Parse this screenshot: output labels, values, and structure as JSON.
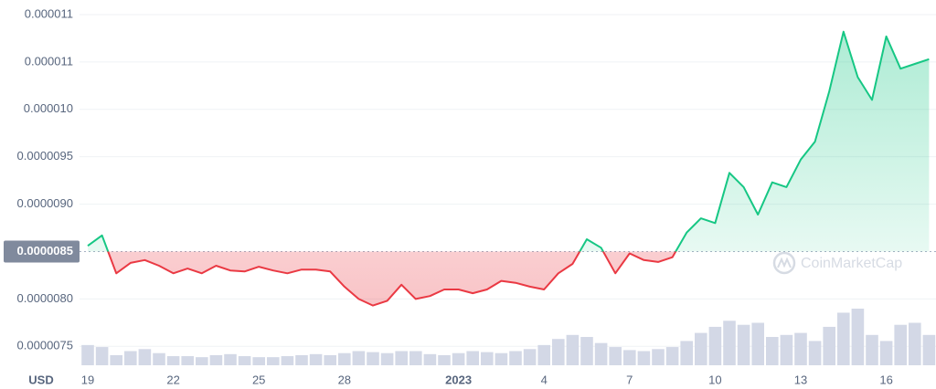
{
  "chart_data": {
    "type": "line",
    "categories": [
      "19",
      null,
      null,
      null,
      null,
      null,
      "22",
      null,
      null,
      null,
      null,
      null,
      "25",
      null,
      null,
      null,
      null,
      null,
      "28",
      null,
      null,
      null,
      null,
      null,
      null,
      null,
      "2023",
      null,
      null,
      null,
      null,
      null,
      "4",
      null,
      null,
      null,
      null,
      null,
      "7",
      null,
      null,
      null,
      null,
      null,
      "10",
      null,
      null,
      null,
      null,
      null,
      "13",
      null,
      null,
      null,
      null,
      null,
      "16",
      null,
      null,
      null
    ],
    "values": [
      8.56e-06,
      8.67e-06,
      8.27e-06,
      8.38e-06,
      8.41e-06,
      8.35e-06,
      8.27e-06,
      8.32e-06,
      8.27e-06,
      8.35e-06,
      8.3e-06,
      8.29e-06,
      8.34e-06,
      8.3e-06,
      8.27e-06,
      8.31e-06,
      8.31e-06,
      8.29e-06,
      8.13e-06,
      8e-06,
      7.93e-06,
      7.98e-06,
      8.15e-06,
      8e-06,
      8.03e-06,
      8.1e-06,
      8.1e-06,
      8.06e-06,
      8.1e-06,
      8.19e-06,
      8.17e-06,
      8.13e-06,
      8.1e-06,
      8.27e-06,
      8.37e-06,
      8.63e-06,
      8.54e-06,
      8.27e-06,
      8.48e-06,
      8.41e-06,
      8.39e-06,
      8.44e-06,
      8.7e-06,
      8.85e-06,
      8.8e-06,
      9.33e-06,
      9.18e-06,
      8.89e-06,
      9.23e-06,
      9.18e-06,
      9.47e-06,
      9.66e-06,
      1.019e-05,
      1.082e-05,
      1.034e-05,
      1.01e-05,
      1.077e-05,
      1.043e-05,
      1.048e-05,
      1.053e-05
    ],
    "volume": [
      20,
      18,
      10,
      14,
      16,
      12,
      9,
      9,
      8,
      10,
      11,
      9,
      8,
      8,
      9,
      10,
      11,
      10,
      12,
      14,
      13,
      12,
      14,
      14,
      11,
      10,
      12,
      14,
      13,
      12,
      14,
      16,
      20,
      26,
      30,
      28,
      22,
      18,
      15,
      14,
      16,
      18,
      24,
      32,
      38,
      44,
      40,
      42,
      28,
      30,
      32,
      24,
      38,
      52,
      56,
      30,
      24,
      40,
      42,
      30
    ],
    "ylim": [
      7.3e-06,
      1.1e-05
    ],
    "yticks": [
      1.1e-05,
      {
        "value": 1.05e-05,
        "label": "0.000011"
      },
      {
        "value": 1e-05,
        "label": "0.000010"
      },
      9.5e-06,
      {
        "value": 9e-06,
        "label": "0.0000090"
      },
      8.5e-06,
      {
        "value": 8e-06,
        "label": "0.0000080"
      },
      7.5e-06
    ],
    "reference": 8.5e-06,
    "color_up": "#16c784",
    "color_down": "#ea3943",
    "volume_color": "#d3d8e6",
    "grid": true,
    "currency": "USD",
    "watermark": "CoinMarketCap"
  }
}
